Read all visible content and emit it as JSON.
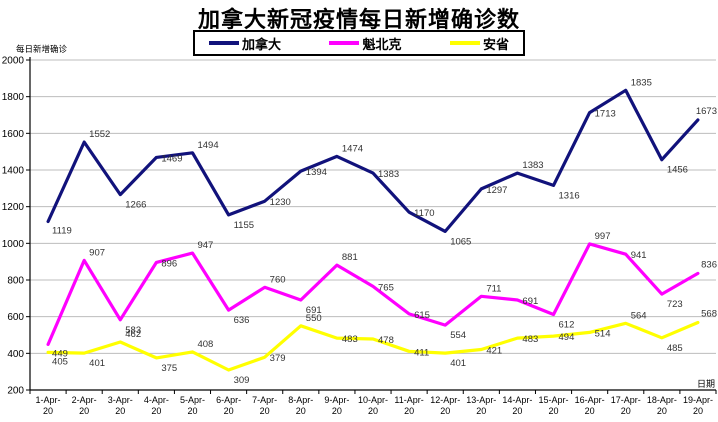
{
  "title": "加拿大新冠疫情每日新增确诊数",
  "y_axis_label": "每日新增确诊",
  "x_axis_label": "日期",
  "legend": [
    {
      "label": "加拿大",
      "color": "#11127b"
    },
    {
      "label": "魁北克",
      "color": "#ff00ff"
    },
    {
      "label": "安省",
      "color": "#ffff00"
    }
  ],
  "chart_data": {
    "type": "line",
    "title": "加拿大新冠疫情每日新增确诊数",
    "xlabel": "日期",
    "ylabel": "每日新增确诊",
    "ylim": [
      200,
      2000
    ],
    "y_tick_step": 200,
    "y_ticks": [
      200,
      400,
      600,
      800,
      1000,
      1200,
      1400,
      1600,
      1800,
      2000
    ],
    "grid": true,
    "legend_position": "top",
    "categories": [
      "1-Apr-20",
      "2-Apr-20",
      "3-Apr-20",
      "4-Apr-20",
      "5-Apr-20",
      "6-Apr-20",
      "7-Apr-20",
      "8-Apr-20",
      "9-Apr-20",
      "10-Apr-20",
      "11-Apr-20",
      "12-Apr-20",
      "13-Apr-20",
      "14-Apr-20",
      "15-Apr-20",
      "16-Apr-20",
      "17-Apr-20",
      "18-Apr-20",
      "19-Apr-20"
    ],
    "series": [
      {
        "name": "加拿大",
        "color": "#11127b",
        "values": [
          1119,
          1552,
          1266,
          1469,
          1494,
          1155,
          1230,
          1394,
          1474,
          1383,
          1170,
          1065,
          1297,
          1383,
          1316,
          1713,
          1835,
          1456,
          1673
        ]
      },
      {
        "name": "魁北克",
        "color": "#ff00ff",
        "values": [
          449,
          907,
          583,
          896,
          947,
          636,
          760,
          691,
          881,
          765,
          615,
          554,
          711,
          691,
          612,
          997,
          941,
          723,
          836
        ]
      },
      {
        "name": "安省",
        "color": "#ffff00",
        "values": [
          405,
          401,
          462,
          375,
          408,
          309,
          379,
          550,
          483,
          478,
          411,
          401,
          421,
          483,
          494,
          514,
          564,
          485,
          568
        ]
      }
    ]
  },
  "colors": {
    "gridline": "#bdbdbd",
    "axis": "#000000",
    "data_label": "#333333",
    "background": "#ffffff"
  }
}
